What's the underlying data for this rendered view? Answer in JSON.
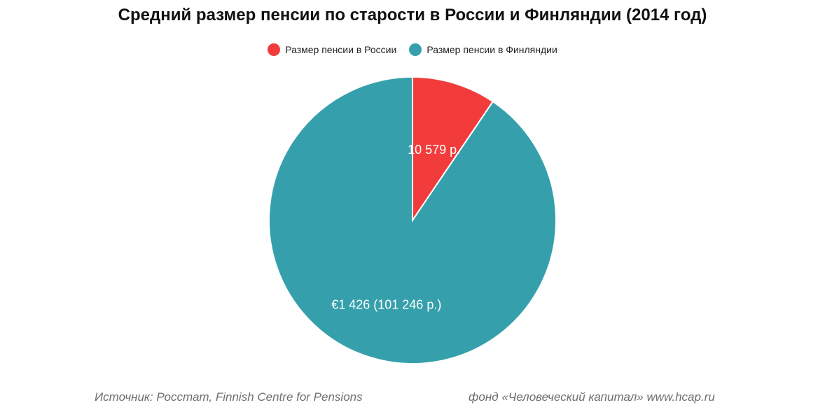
{
  "chart_data": {
    "type": "pie",
    "title": "Средний размер пенсии по старости в России и Финляндии (2014 год)",
    "legend_position": "top",
    "slices": [
      {
        "name": "Размер пенсии в России",
        "value": 10579,
        "label": "10 579 р.",
        "color": "#f23c3c"
      },
      {
        "name": "Размер пенсии в Финляндии",
        "value": 101246,
        "label": "€1 426 (101 246 р.)",
        "color": "#35a0ac"
      }
    ]
  },
  "footer": {
    "source": "Источник: Росстат, Finnish Centre for Pensions",
    "credit": "фонд «Человеческий капитал» www.hcap.ru"
  }
}
